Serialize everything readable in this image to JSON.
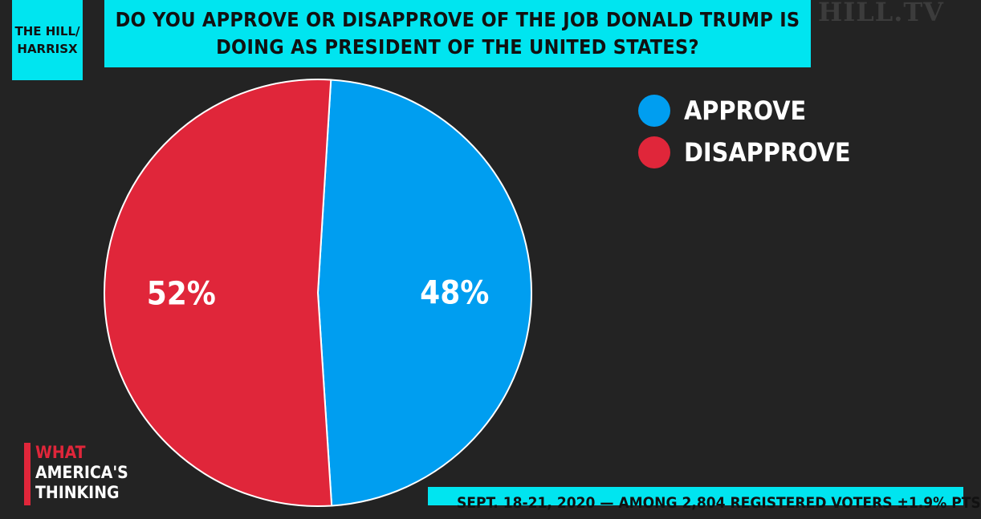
{
  "source": {
    "line1": "THE HILL/",
    "line2": "HARRISX"
  },
  "title": {
    "line1": "DO YOU APPROVE OR DISAPPROVE OF THE JOB DONALD TRUMP IS",
    "line2": "DOING AS PRESIDENT OF THE UNITED STATES?"
  },
  "brand": "HILL.TV",
  "branding": {
    "line1": "WHAT",
    "line2": "AMERICA'S",
    "line3": "THINKING"
  },
  "footnote": "SEPT. 18-21, 2020 — AMONG 2,804 REGISTERED VOTERS ±1.9% PTS",
  "colors": {
    "accent": "#00e5f0",
    "approve": "#009ef0",
    "disapprove": "#e0263a",
    "background": "#232323"
  },
  "chart_data": {
    "type": "pie",
    "title": "DO YOU APPROVE OR DISAPPROVE OF THE JOB DONALD TRUMP IS DOING AS PRESIDENT OF THE UNITED STATES?",
    "slices": [
      {
        "label": "APPROVE",
        "value": 48,
        "display": "48%",
        "color": "#009ef0"
      },
      {
        "label": "DISAPPROVE",
        "value": 52,
        "display": "52%",
        "color": "#e0263a"
      }
    ],
    "legend_position": "top-right"
  }
}
